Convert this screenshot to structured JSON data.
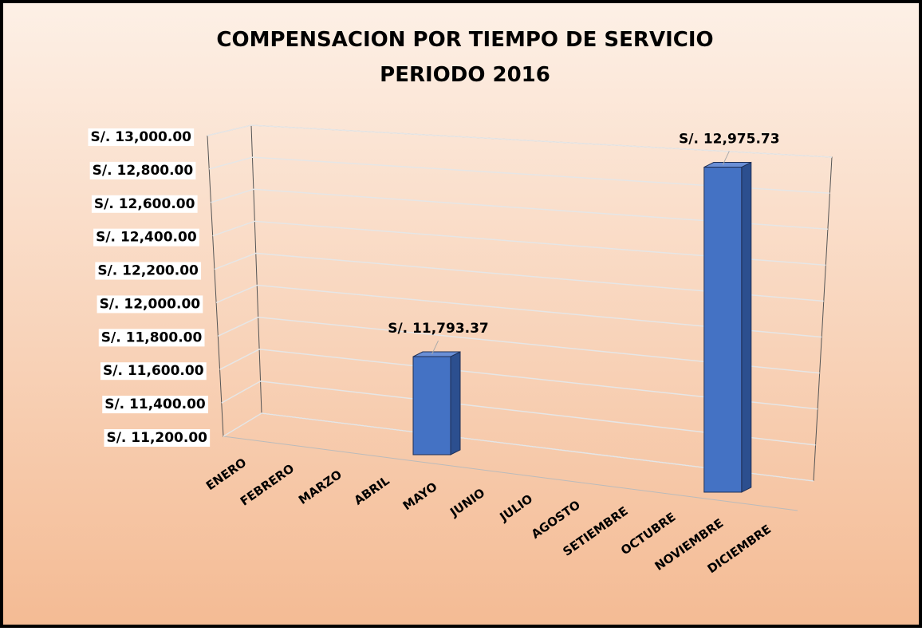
{
  "chart_data": {
    "type": "bar3d",
    "title": "COMPENSACION POR TIEMPO DE SERVICIO",
    "subtitle": "PERIODO 2016",
    "categories": [
      "ENERO",
      "FEBRERO",
      "MARZO",
      "ABRIL",
      "MAYO",
      "JUNIO",
      "JULIO",
      "AGOSTO",
      "SETIEMBRE",
      "OCTUBRE",
      "NOVIEMBRE",
      "DICIEMBRE"
    ],
    "values": [
      null,
      null,
      null,
      null,
      11793.37,
      null,
      null,
      null,
      null,
      null,
      12975.73,
      null
    ],
    "value_labels": [
      null,
      null,
      null,
      null,
      "S/. 11,793.37",
      null,
      null,
      null,
      null,
      null,
      "S/. 12,975.73",
      null
    ],
    "color": "#4472c4",
    "ylim": [
      11200,
      13000
    ],
    "yticks": [
      {
        "value": 11200,
        "label": "S/. 11,200.00"
      },
      {
        "value": 11400,
        "label": "S/. 11,400.00"
      },
      {
        "value": 11600,
        "label": "S/. 11,600.00"
      },
      {
        "value": 11800,
        "label": "S/. 11,800.00"
      },
      {
        "value": 12000,
        "label": "S/. 12,000.00"
      },
      {
        "value": 12200,
        "label": "S/. 12,200.00"
      },
      {
        "value": 12400,
        "label": "S/. 12,400.00"
      },
      {
        "value": 12600,
        "label": "S/. 12,600.00"
      },
      {
        "value": 12800,
        "label": "S/. 12,800.00"
      },
      {
        "value": 13000,
        "label": "S/. 13,000.00"
      }
    ],
    "grid": true
  }
}
